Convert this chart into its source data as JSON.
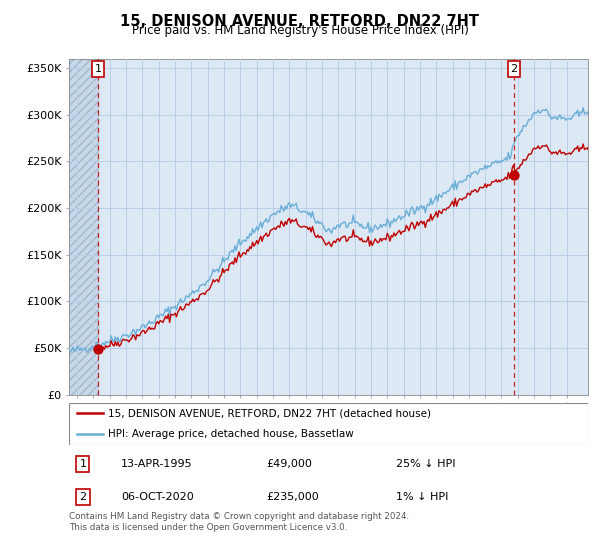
{
  "title": "15, DENISON AVENUE, RETFORD, DN22 7HT",
  "subtitle": "Price paid vs. HM Land Registry's House Price Index (HPI)",
  "ylabel_ticks": [
    "£0",
    "£50K",
    "£100K",
    "£150K",
    "£200K",
    "£250K",
    "£300K",
    "£350K"
  ],
  "ytick_values": [
    0,
    50000,
    100000,
    150000,
    200000,
    250000,
    300000,
    350000
  ],
  "ylim": [
    0,
    360000
  ],
  "xlim_start": 1993.5,
  "xlim_end": 2025.3,
  "sale1_date": 1995.28,
  "sale1_price": 49000,
  "sale2_date": 2020.76,
  "sale2_price": 235000,
  "legend_line1": "15, DENISON AVENUE, RETFORD, DN22 7HT (detached house)",
  "legend_line2": "HPI: Average price, detached house, Bassetlaw",
  "ann1_date": "13-APR-1995",
  "ann1_price": "£49,000",
  "ann1_hpi": "25% ↓ HPI",
  "ann2_date": "06-OCT-2020",
  "ann2_price": "£235,000",
  "ann2_hpi": "1% ↓ HPI",
  "footnote": "Contains HM Land Registry data © Crown copyright and database right 2024.\nThis data is licensed under the Open Government Licence v3.0.",
  "hpi_color": "#6aaed6",
  "sale_color": "#c00000",
  "grid_color": "#b8cfe8",
  "plot_bg": "#dce9f5",
  "bg_color": "#ffffff"
}
